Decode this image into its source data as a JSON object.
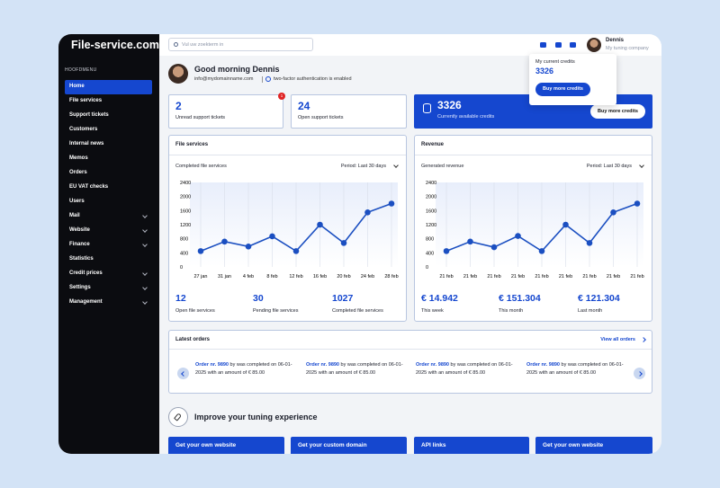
{
  "sidebar": {
    "logo": "File-service.com",
    "menu_title": "HOOFDMENU",
    "active": 0,
    "items": [
      {
        "label": "Home"
      },
      {
        "label": "File services"
      },
      {
        "label": "Support tickets"
      },
      {
        "label": "Customers"
      },
      {
        "label": "Internal news"
      },
      {
        "label": "Memos"
      },
      {
        "label": "Orders"
      },
      {
        "label": "EU VAT checks"
      },
      {
        "label": "Users"
      },
      {
        "label": "Mail",
        "submenu": true
      },
      {
        "label": "Website",
        "submenu": true
      },
      {
        "label": "Finance",
        "submenu": true
      },
      {
        "label": "Statistics"
      },
      {
        "label": "Credit prices",
        "submenu": true
      },
      {
        "label": "Settings",
        "submenu": true
      },
      {
        "label": "Management",
        "submenu": true
      }
    ]
  },
  "header": {
    "search_placeholder": "Vul uw zoekterm in",
    "user_name": "Dennis",
    "user_company": "My tuning company"
  },
  "credits_popup": {
    "title": "My current credits",
    "credits": 3326,
    "button": "Buy more credits"
  },
  "greeting": {
    "title": "Good morning Dennis",
    "email": "info@mydomainname.com",
    "security": "two-factor authentication is enabled"
  },
  "stats": [
    {
      "value": 2,
      "label": "Unread support tickets",
      "badge": 1
    },
    {
      "value": 24,
      "label": "Open support tickets"
    }
  ],
  "credits_card": {
    "value": 3326,
    "label": "Currently available credits",
    "button": "Buy more credits"
  },
  "panels": [
    {
      "period": "Period: Last 30 days",
      "summary": [
        {
          "value": 12,
          "label": "Open file services"
        },
        {
          "value": 30,
          "label": "Pending file services"
        },
        {
          "value": 1027,
          "label": "Completed file services"
        }
      ]
    },
    {
      "period": "Period: Last 30 days",
      "summary": [
        {
          "value": "€ 14.942",
          "label": "This week"
        },
        {
          "value": "€ 151.304",
          "label": "This month"
        },
        {
          "value": "€ 121.304",
          "label": "Last month"
        }
      ]
    }
  ],
  "chart_data": [
    {
      "type": "line",
      "title": "File services",
      "subtitle": "Completed file services",
      "categories": [
        "27 jan",
        "31 jan",
        "4 feb",
        "8 feb",
        "12 feb",
        "16 feb",
        "20 feb",
        "24 feb",
        "28 feb"
      ],
      "values": [
        450,
        720,
        580,
        870,
        450,
        1200,
        680,
        1550,
        1800
      ],
      "color": "#1b4fc1",
      "ylim": [
        0,
        2400
      ],
      "yticks": [
        0,
        400,
        800,
        1200,
        1600,
        2000,
        2400
      ],
      "grid": "x"
    },
    {
      "type": "line",
      "title": "Revenue",
      "subtitle": "Generated revenue",
      "categories": [
        "21 feb",
        "21 feb",
        "21 feb",
        "21 feb",
        "21 feb",
        "21 feb",
        "21 feb",
        "21 feb",
        "21 feb"
      ],
      "values": [
        450,
        720,
        560,
        880,
        450,
        1200,
        680,
        1550,
        1800
      ],
      "color": "#1b4fc1",
      "ylim": [
        0,
        2400
      ],
      "yticks": [
        0,
        400,
        800,
        1200,
        1600,
        2000,
        2400
      ],
      "grid": "x"
    }
  ],
  "latest_orders": {
    "title": "Latest orders",
    "link": "View all orders",
    "orders": [
      {
        "order": "Order nr. 9890",
        "text": "by was completed on 06-01-2025 with an amount of € 85.00"
      },
      {
        "order": "Order nr. 9890",
        "text": "by was completed on 06-01-2025 with an amount of € 85.00"
      },
      {
        "order": "Order nr. 9890",
        "text": "by was completed on 06-01-2025 with an amount of € 85.00"
      },
      {
        "order": "Order nr. 9890",
        "text": "by was completed on 06-01-2025 with an amount of € 85.00"
      }
    ]
  },
  "improve": {
    "title": "Improve your tuning experience",
    "cards": [
      "Get your own website",
      "Get your custom domain",
      "API links",
      "Get your own website"
    ]
  }
}
